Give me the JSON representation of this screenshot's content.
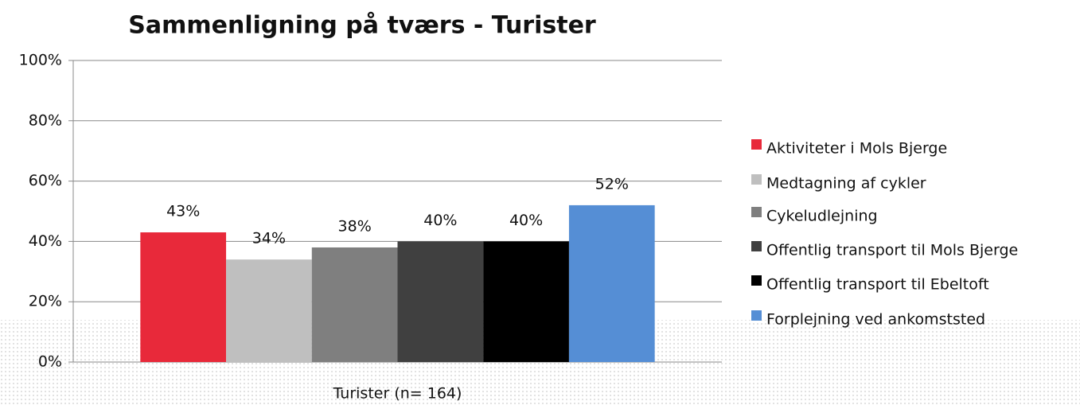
{
  "chart_data": {
    "type": "bar",
    "title": "Sammenligning på tværs - Turister",
    "categories": [
      "Turister (n= 164)"
    ],
    "series": [
      {
        "name": "Aktiviteter i Mols Bjerge",
        "color": "#e8293a",
        "values": [
          43
        ],
        "value_labels": [
          "43%"
        ]
      },
      {
        "name": "Medtagning af cykler",
        "color": "#bfbfbf",
        "values": [
          34
        ],
        "value_labels": [
          "34%"
        ]
      },
      {
        "name": "Cykeludlejning",
        "color": "#7f7f7f",
        "values": [
          38
        ],
        "value_labels": [
          "38%"
        ]
      },
      {
        "name": "Offentlig transport til Mols Bjerge",
        "color": "#404040",
        "values": [
          40
        ],
        "value_labels": [
          "40%"
        ]
      },
      {
        "name": "Offentlig transport til Ebeltoft",
        "color": "#000000",
        "values": [
          40
        ],
        "value_labels": [
          "40%"
        ]
      },
      {
        "name": "Forplejning ved ankomststed",
        "color": "#558ed5",
        "values": [
          52
        ],
        "value_labels": [
          "52%"
        ]
      }
    ],
    "ylim": [
      0,
      100
    ],
    "yticks": [
      {
        "value": 0,
        "label": "0%"
      },
      {
        "value": 20,
        "label": "20%"
      },
      {
        "value": 40,
        "label": "40%"
      },
      {
        "value": 60,
        "label": "60%"
      },
      {
        "value": 80,
        "label": "80%"
      },
      {
        "value": 100,
        "label": "100%"
      }
    ],
    "grid": true,
    "legend": "right"
  }
}
